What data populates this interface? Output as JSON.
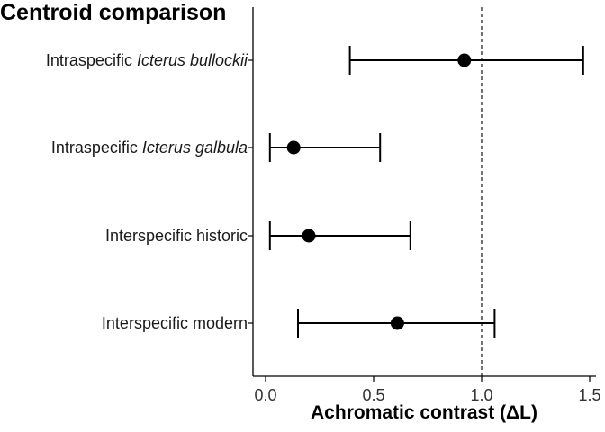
{
  "chart_data": {
    "type": "scatter",
    "subtype": "point-range (dot with horizontal error bars)",
    "title": "Centroid comparison",
    "xlabel": "Achromatic contrast (ΔL)",
    "ylabel": "",
    "xlim": [
      -0.05,
      1.52
    ],
    "x_ticks": [
      {
        "value": 0.0,
        "label": "0.0"
      },
      {
        "value": 0.5,
        "label": "0.5"
      },
      {
        "value": 1.0,
        "label": "1.0"
      },
      {
        "value": 1.5,
        "label": "1.5"
      }
    ],
    "reference_line": {
      "x": 1.0,
      "style": "dashed"
    },
    "grid": false,
    "categories": [
      {
        "prefix": "Intraspecific ",
        "italic": "Icterus bullockii",
        "suffix": ""
      },
      {
        "prefix": "Intraspecific ",
        "italic": "Icterus galbula",
        "suffix": ""
      },
      {
        "prefix": "Interspecific historic",
        "italic": "",
        "suffix": ""
      },
      {
        "prefix": "Interspecific modern",
        "italic": "",
        "suffix": ""
      }
    ],
    "points": [
      {
        "x": 0.92,
        "xmin": 0.39,
        "xmax": 1.47
      },
      {
        "x": 0.13,
        "xmin": 0.02,
        "xmax": 0.53
      },
      {
        "x": 0.2,
        "xmin": 0.02,
        "xmax": 0.67
      },
      {
        "x": 0.61,
        "xmin": 0.15,
        "xmax": 1.06
      }
    ],
    "colors": {
      "point": "#000000",
      "axis": "#000000",
      "reference_line": "#000000"
    }
  }
}
